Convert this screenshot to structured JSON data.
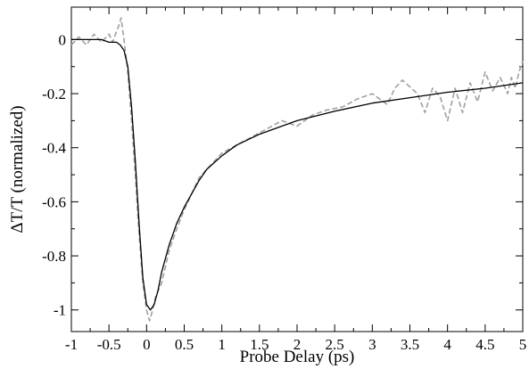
{
  "chart_data": {
    "type": "line",
    "title": "",
    "xlabel": "Probe Delay (ps)",
    "ylabel": "ΔT/T (normalized)",
    "xlim": [
      -1,
      5
    ],
    "ylim": [
      -1.08,
      0.12
    ],
    "x_ticks": [
      -1,
      -0.5,
      0,
      0.5,
      1,
      1.5,
      2,
      2.5,
      3,
      3.5,
      4,
      4.5,
      5
    ],
    "x_tick_labels": [
      "-1",
      "-0.5",
      "0",
      "0.5",
      "1",
      "1.5",
      "2",
      "2.5",
      "3",
      "3.5",
      "4",
      "4.5",
      "5"
    ],
    "y_ticks": [
      0,
      -0.2,
      -0.4,
      -0.6,
      -0.8,
      -1
    ],
    "y_tick_labels": [
      "0",
      "-0.2",
      "-0.4",
      "-0.6",
      "-0.8",
      "-1"
    ],
    "grid": false,
    "legend": "none",
    "series": [
      {
        "style": "solid",
        "color": "#000000",
        "x": [
          -1.0,
          -0.8,
          -0.6,
          -0.5,
          -0.4,
          -0.35,
          -0.3,
          -0.25,
          -0.2,
          -0.15,
          -0.1,
          -0.05,
          0.0,
          0.05,
          0.1,
          0.15,
          0.2,
          0.3,
          0.4,
          0.5,
          0.6,
          0.7,
          0.8,
          1.0,
          1.2,
          1.5,
          2.0,
          2.5,
          3.0,
          3.5,
          4.0,
          4.5,
          5.0
        ],
        "y": [
          0.0,
          0.0,
          0.0,
          -0.01,
          -0.01,
          -0.02,
          -0.04,
          -0.1,
          -0.25,
          -0.45,
          -0.68,
          -0.88,
          -0.98,
          -1.0,
          -0.98,
          -0.93,
          -0.86,
          -0.76,
          -0.68,
          -0.62,
          -0.57,
          -0.52,
          -0.48,
          -0.43,
          -0.39,
          -0.35,
          -0.3,
          -0.265,
          -0.235,
          -0.215,
          -0.195,
          -0.18,
          -0.16
        ]
      },
      {
        "style": "dashed",
        "color": "#a0a0a0",
        "x": [
          -1.0,
          -0.9,
          -0.8,
          -0.7,
          -0.6,
          -0.5,
          -0.45,
          -0.4,
          -0.37,
          -0.34,
          -0.3,
          -0.25,
          -0.2,
          -0.15,
          -0.1,
          -0.05,
          0.0,
          0.04,
          0.08,
          0.12,
          0.2,
          0.3,
          0.4,
          0.5,
          0.6,
          0.7,
          0.8,
          0.9,
          1.0,
          1.2,
          1.4,
          1.6,
          1.8,
          2.0,
          2.2,
          2.4,
          2.6,
          2.8,
          3.0,
          3.2,
          3.3,
          3.4,
          3.6,
          3.7,
          3.8,
          3.9,
          4.0,
          4.1,
          4.2,
          4.3,
          4.4,
          4.5,
          4.6,
          4.7,
          4.8,
          4.85,
          4.9,
          4.95,
          5.0
        ],
        "y": [
          -0.02,
          0.01,
          -0.02,
          0.02,
          -0.01,
          0.02,
          -0.01,
          0.03,
          0.05,
          0.08,
          0.0,
          -0.12,
          -0.3,
          -0.5,
          -0.72,
          -0.9,
          -1.0,
          -1.04,
          -1.0,
          -0.95,
          -0.9,
          -0.78,
          -0.7,
          -0.63,
          -0.57,
          -0.51,
          -0.48,
          -0.45,
          -0.42,
          -0.39,
          -0.36,
          -0.33,
          -0.3,
          -0.32,
          -0.28,
          -0.26,
          -0.25,
          -0.22,
          -0.2,
          -0.24,
          -0.18,
          -0.15,
          -0.2,
          -0.27,
          -0.18,
          -0.21,
          -0.3,
          -0.18,
          -0.27,
          -0.16,
          -0.23,
          -0.12,
          -0.19,
          -0.14,
          -0.2,
          -0.14,
          -0.18,
          -0.12,
          -0.08
        ]
      }
    ]
  }
}
